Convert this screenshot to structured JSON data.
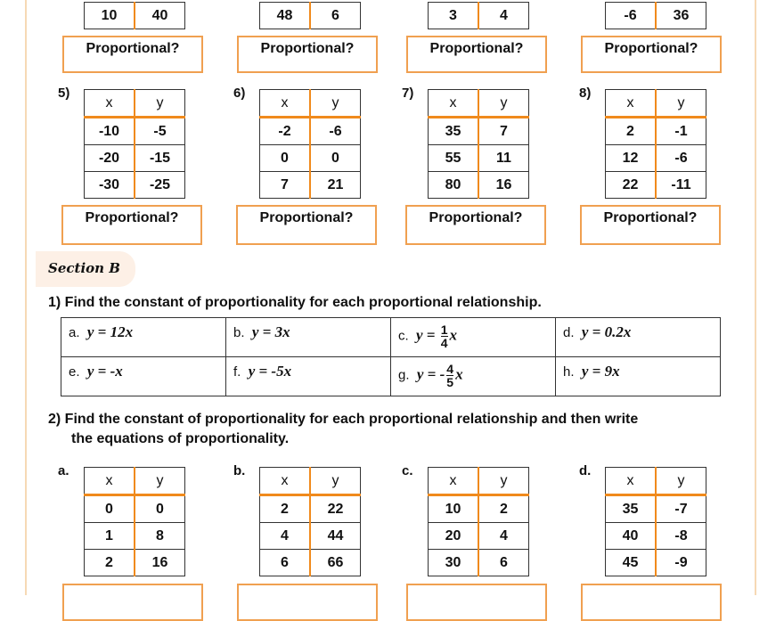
{
  "section_a": {
    "top_row": [
      [
        "10",
        "40"
      ],
      [
        "48",
        "6"
      ],
      [
        "3",
        "4"
      ],
      [
        "-6",
        "36"
      ]
    ],
    "box_label": "Proportional?",
    "tables": [
      {
        "label": "5)",
        "headers": [
          "x",
          "y"
        ],
        "rows": [
          [
            "-10",
            "-5"
          ],
          [
            "-20",
            "-15"
          ],
          [
            "-30",
            "-25"
          ]
        ]
      },
      {
        "label": "6)",
        "headers": [
          "x",
          "y"
        ],
        "rows": [
          [
            "-2",
            "-6"
          ],
          [
            "0",
            "0"
          ],
          [
            "7",
            "21"
          ]
        ]
      },
      {
        "label": "7)",
        "headers": [
          "x",
          "y"
        ],
        "rows": [
          [
            "35",
            "7"
          ],
          [
            "55",
            "11"
          ],
          [
            "80",
            "16"
          ]
        ]
      },
      {
        "label": "8)",
        "headers": [
          "x",
          "y"
        ],
        "rows": [
          [
            "2",
            "-1"
          ],
          [
            "12",
            "-6"
          ],
          [
            "22",
            "-11"
          ]
        ]
      }
    ]
  },
  "section_b": {
    "title": "Section B",
    "q1": "1)  Find the constant of proportionality for each proportional relationship.",
    "equations": [
      {
        "label": "a.",
        "eq": "y = 12x"
      },
      {
        "label": "b.",
        "eq": "y = 3x"
      },
      {
        "label": "c.",
        "pre": "y = ",
        "num": "1",
        "den": "4",
        "post": "x"
      },
      {
        "label": "d.",
        "eq": "y = 0.2x"
      },
      {
        "label": "e.",
        "eq": "y = -x"
      },
      {
        "label": "f.",
        "eq": "y = -5x"
      },
      {
        "label": "g.",
        "pre": "y = -",
        "num": "4",
        "den": "5",
        "post": "x"
      },
      {
        "label": "h.",
        "eq": "y = 9x"
      }
    ],
    "q2_line1": "2)  Find the constant of proportionality for each proportional relationship and then write",
    "q2_line2": "the equations of proportionality.",
    "tables": [
      {
        "label": "a.",
        "headers": [
          "x",
          "y"
        ],
        "rows": [
          [
            "0",
            "0"
          ],
          [
            "1",
            "8"
          ],
          [
            "2",
            "16"
          ]
        ]
      },
      {
        "label": "b.",
        "headers": [
          "x",
          "y"
        ],
        "rows": [
          [
            "2",
            "22"
          ],
          [
            "4",
            "44"
          ],
          [
            "6",
            "66"
          ]
        ]
      },
      {
        "label": "c.",
        "headers": [
          "x",
          "y"
        ],
        "rows": [
          [
            "10",
            "2"
          ],
          [
            "20",
            "4"
          ],
          [
            "30",
            "6"
          ]
        ]
      },
      {
        "label": "d.",
        "headers": [
          "x",
          "y"
        ],
        "rows": [
          [
            "35",
            "-7"
          ],
          [
            "40",
            "-8"
          ],
          [
            "45",
            "-9"
          ]
        ]
      }
    ]
  }
}
